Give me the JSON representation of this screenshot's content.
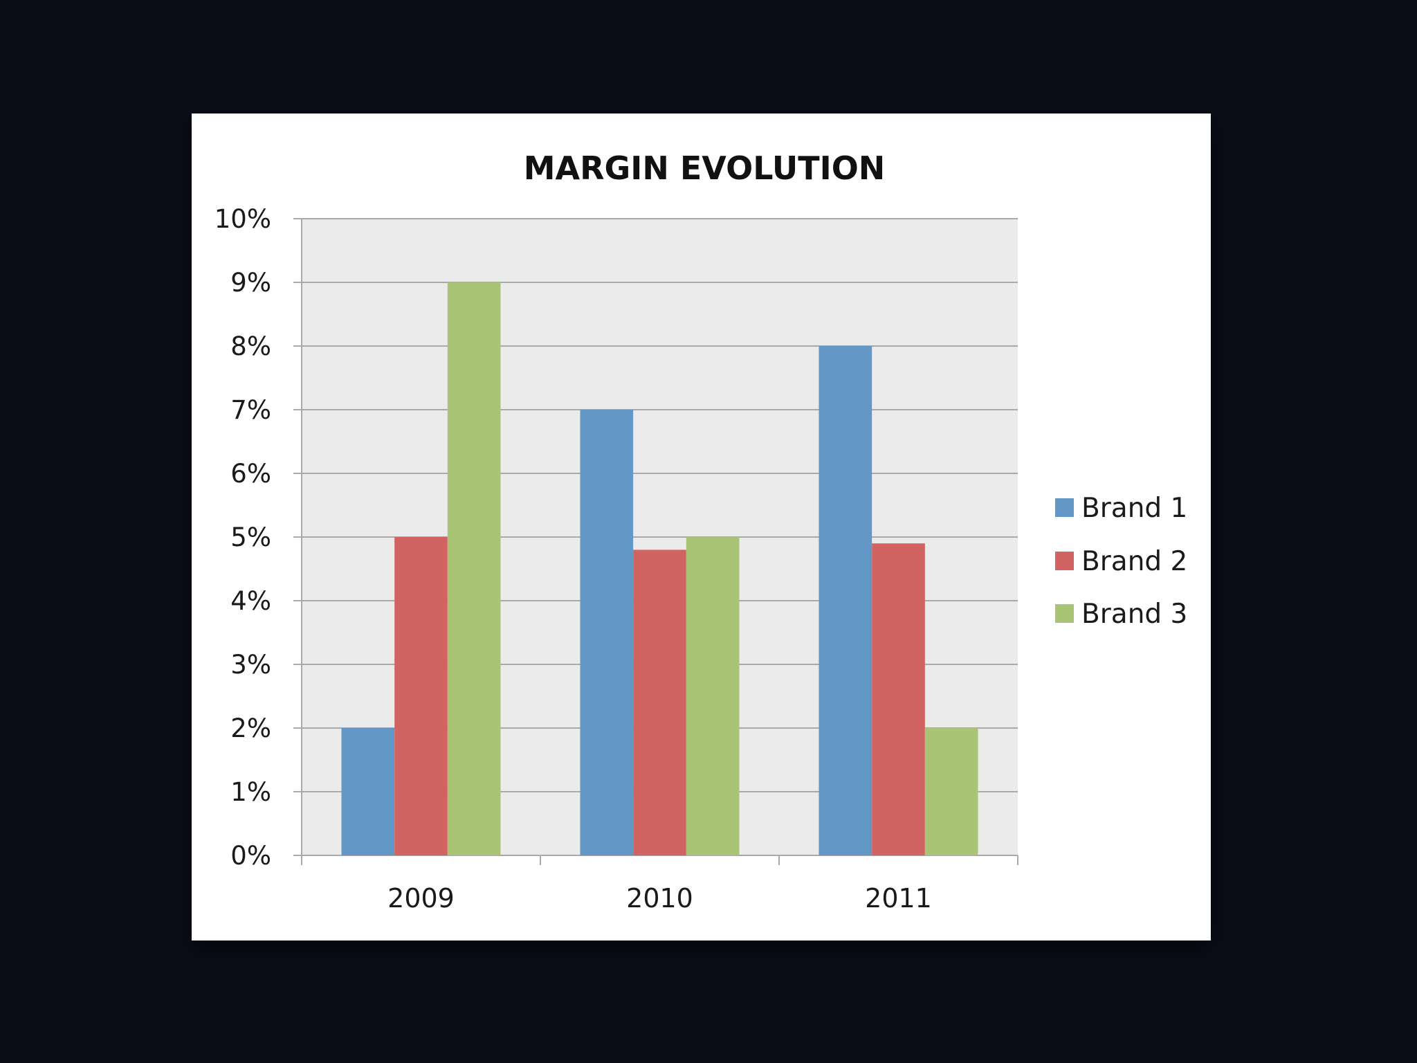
{
  "chart_data": {
    "type": "bar",
    "title": "MARGIN EVOLUTION",
    "xlabel": "",
    "ylabel": "",
    "categories": [
      "2009",
      "2010",
      "2011"
    ],
    "series": [
      {
        "name": "Brand 1",
        "values": [
          2,
          7,
          8
        ]
      },
      {
        "name": "Brand 2",
        "values": [
          5,
          4.8,
          4.9
        ]
      },
      {
        "name": "Brand 3",
        "values": [
          9,
          5,
          2
        ]
      }
    ],
    "ylim": [
      0,
      10
    ],
    "yticks": [
      0,
      1,
      2,
      3,
      4,
      5,
      6,
      7,
      8,
      9,
      10
    ],
    "ytick_labels": [
      "0%",
      "1%",
      "2%",
      "3%",
      "4%",
      "5%",
      "6%",
      "7%",
      "8%",
      "9%",
      "10%"
    ],
    "grid": "horizontal",
    "legend_position": "right",
    "colors": [
      "#6297c6",
      "#d16462",
      "#a9c475"
    ]
  }
}
